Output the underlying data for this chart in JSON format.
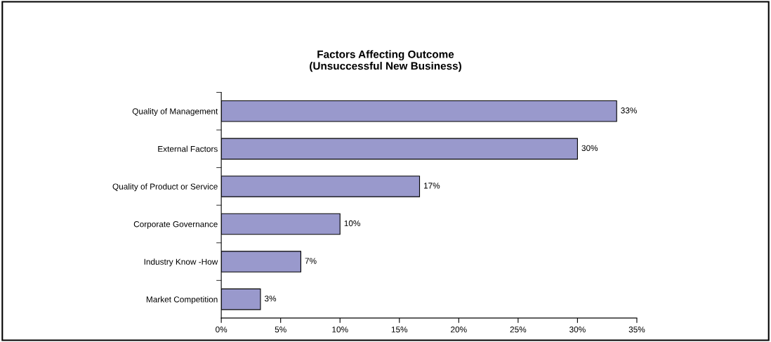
{
  "chart_data": {
    "type": "bar",
    "orientation": "horizontal",
    "title": "Factors Affecting Outcome\n(Unsuccessful New Business)",
    "categories": [
      "Quality of Management",
      "External Factors",
      "Quality of Product or Service",
      "Corporate Governance",
      "Industry Know -How",
      "Market Competition"
    ],
    "values": [
      33.3,
      30.0,
      16.7,
      10.0,
      6.7,
      3.3
    ],
    "value_labels": [
      "33%",
      "30%",
      "17%",
      "10%",
      "7%",
      "3%"
    ],
    "color": "#9999cc",
    "xlim": [
      0,
      35
    ],
    "xticks": [
      {
        "value": 0,
        "label": "0%"
      },
      {
        "value": 5,
        "label": "5%"
      },
      {
        "value": 10,
        "label": "10%"
      },
      {
        "value": 15,
        "label": "15%"
      },
      {
        "value": 20,
        "label": "20%"
      },
      {
        "value": 25,
        "label": "25%"
      },
      {
        "value": 30,
        "label": "30%"
      },
      {
        "value": 35,
        "label": "35%"
      }
    ],
    "grid": false,
    "legend": false
  }
}
